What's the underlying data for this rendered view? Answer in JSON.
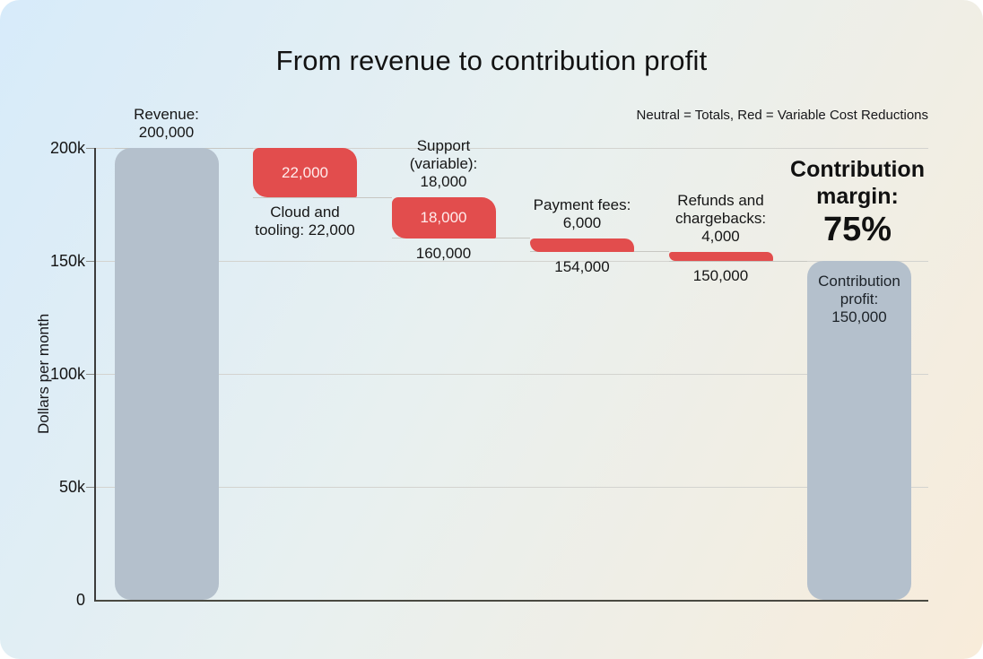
{
  "title": "From revenue to contribution profit",
  "legend_note": "Neutral = Totals, Red = Variable Cost Reductions",
  "annotation": {
    "label": "Contribution margin:",
    "value": "75%"
  },
  "y_axis": {
    "title": "Dollars per month"
  },
  "chart_data": {
    "type": "waterfall",
    "title": "From revenue to contribution profit",
    "ylabel": "Dollars per month",
    "ylim": [
      0,
      200000
    ],
    "grid": true,
    "legend_note": "Neutral = Totals, Red = Variable Cost Reductions",
    "colors": {
      "total": "#b4c0cc",
      "decrease": "#e24d4d"
    },
    "y_ticks": [
      {
        "value": 0,
        "label": "0"
      },
      {
        "value": 50000,
        "label": "50k"
      },
      {
        "value": 100000,
        "label": "100k"
      },
      {
        "value": 150000,
        "label": "150k"
      },
      {
        "value": 200000,
        "label": "200k"
      }
    ],
    "steps": [
      {
        "id": "revenue",
        "name": "Revenue",
        "type": "total",
        "value": 200000,
        "cumulative": 200000,
        "above": "Revenue: 200,000"
      },
      {
        "id": "cloud-and-tooling",
        "name": "Cloud and tooling",
        "type": "decrease",
        "value": -22000,
        "cumulative": 178000,
        "inside": "22,000",
        "below": "Cloud and tooling: 22,000"
      },
      {
        "id": "support-variable",
        "name": "Support (variable)",
        "type": "decrease",
        "value": -18000,
        "cumulative": 160000,
        "above": "Support (variable): 18,000",
        "inside": "18,000",
        "below": "160,000"
      },
      {
        "id": "payment-fees",
        "name": "Payment fees",
        "type": "decrease",
        "value": -6000,
        "cumulative": 154000,
        "above": "Payment fees: 6,000",
        "below": "154,000"
      },
      {
        "id": "refunds-and-chargebacks",
        "name": "Refunds and chargebacks",
        "type": "decrease",
        "value": -4000,
        "cumulative": 150000,
        "above": "Refunds and chargebacks: 4,000",
        "below": "150,000"
      },
      {
        "id": "contribution-profit",
        "name": "Contribution profit",
        "type": "total",
        "value": 150000,
        "cumulative": 150000,
        "inside": "Contribution profit: 150,000",
        "inside_dark": true
      }
    ],
    "contribution_margin": "75%"
  }
}
